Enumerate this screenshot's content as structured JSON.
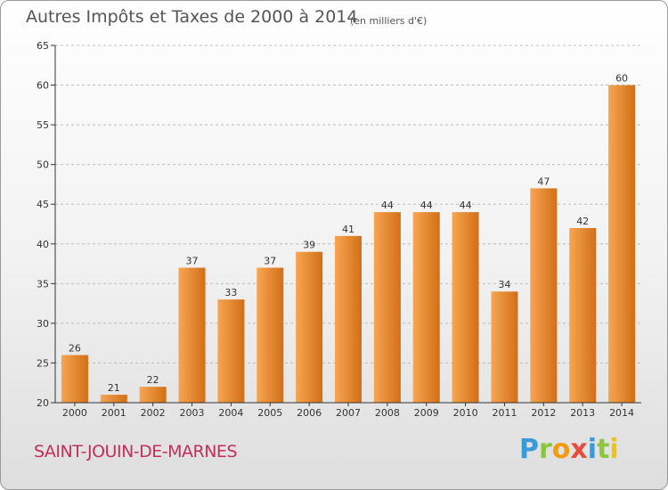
{
  "title": "Autres Impôts et Taxes de 2000 à 2014",
  "subtitle": "(en milliers d'€)",
  "town": "SAINT-JOUIN-DE-MARNES",
  "logo": [
    "P",
    "r",
    "o",
    "x",
    "i",
    "t",
    "i"
  ],
  "colors": {
    "bar_light": "#f7a552",
    "bar_dark": "#d26f16",
    "axis": "#333333",
    "grid": "#bbbbbb",
    "town": "#c0305a"
  },
  "chart_data": {
    "type": "bar",
    "title": "Autres Impôts et Taxes de 2000 à 2014",
    "subtitle": "(en milliers d'€)",
    "categories": [
      "2000",
      "2001",
      "2002",
      "2003",
      "2004",
      "2005",
      "2006",
      "2007",
      "2008",
      "2009",
      "2010",
      "2011",
      "2012",
      "2013",
      "2014"
    ],
    "values": [
      26,
      21,
      22,
      37,
      33,
      37,
      39,
      41,
      44,
      44,
      44,
      34,
      47,
      42,
      60
    ],
    "ylim": [
      20,
      65
    ],
    "yticks": [
      20,
      25,
      30,
      35,
      40,
      45,
      50,
      55,
      60,
      65
    ],
    "grid": "horizontal dashed",
    "xlabel": "",
    "ylabel": ""
  }
}
